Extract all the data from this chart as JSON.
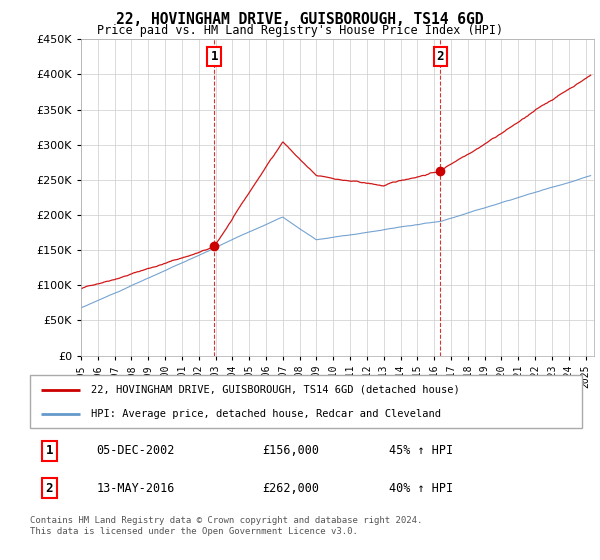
{
  "title": "22, HOVINGHAM DRIVE, GUISBOROUGH, TS14 6GD",
  "subtitle": "Price paid vs. HM Land Registry's House Price Index (HPI)",
  "legend_line1": "22, HOVINGHAM DRIVE, GUISBOROUGH, TS14 6GD (detached house)",
  "legend_line2": "HPI: Average price, detached house, Redcar and Cleveland",
  "sale1_date": "05-DEC-2002",
  "sale1_price": "£156,000",
  "sale1_hpi": "45% ↑ HPI",
  "sale2_date": "13-MAY-2016",
  "sale2_price": "£262,000",
  "sale2_hpi": "40% ↑ HPI",
  "footer": "Contains HM Land Registry data © Crown copyright and database right 2024.\nThis data is licensed under the Open Government Licence v3.0.",
  "sale1_x": 2002.92,
  "sale1_y": 156000,
  "sale2_x": 2016.37,
  "sale2_y": 262000,
  "vline1_x": 2002.92,
  "vline2_x": 2016.37,
  "ylim": [
    0,
    450000
  ],
  "xlim": [
    1995,
    2025.5
  ],
  "red_color": "#cc0000",
  "blue_color": "#6699cc",
  "grid_color": "#cccccc",
  "bg_color": "#ffffff"
}
